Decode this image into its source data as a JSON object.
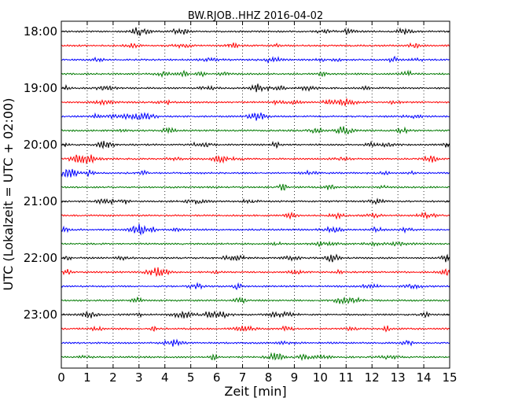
{
  "chart_data": {
    "type": "line",
    "title": "BW.RJOB..HHZ 2016-04-02",
    "xlabel": "Zeit  [min]",
    "ylabel": "UTC (Lokalzeit = UTC + 02:00)",
    "xlim": [
      0,
      15
    ],
    "x_ticks": [
      "0",
      "1",
      "2",
      "3",
      "4",
      "5",
      "6",
      "7",
      "8",
      "9",
      "10",
      "11",
      "12",
      "13",
      "14",
      "15"
    ],
    "y_tick_labels": [
      "18:00",
      "19:00",
      "20:00",
      "21:00",
      "22:00",
      "23:00"
    ],
    "x_grid": "dotted vertical lines at each minute",
    "traces_per_hour": 4,
    "trace_interval_minutes": 15,
    "trace_start": "18:00",
    "trace_count": 24,
    "color_cycle": [
      "#000000",
      "#ff0000",
      "#0000ff",
      "#007a00"
    ]
  }
}
